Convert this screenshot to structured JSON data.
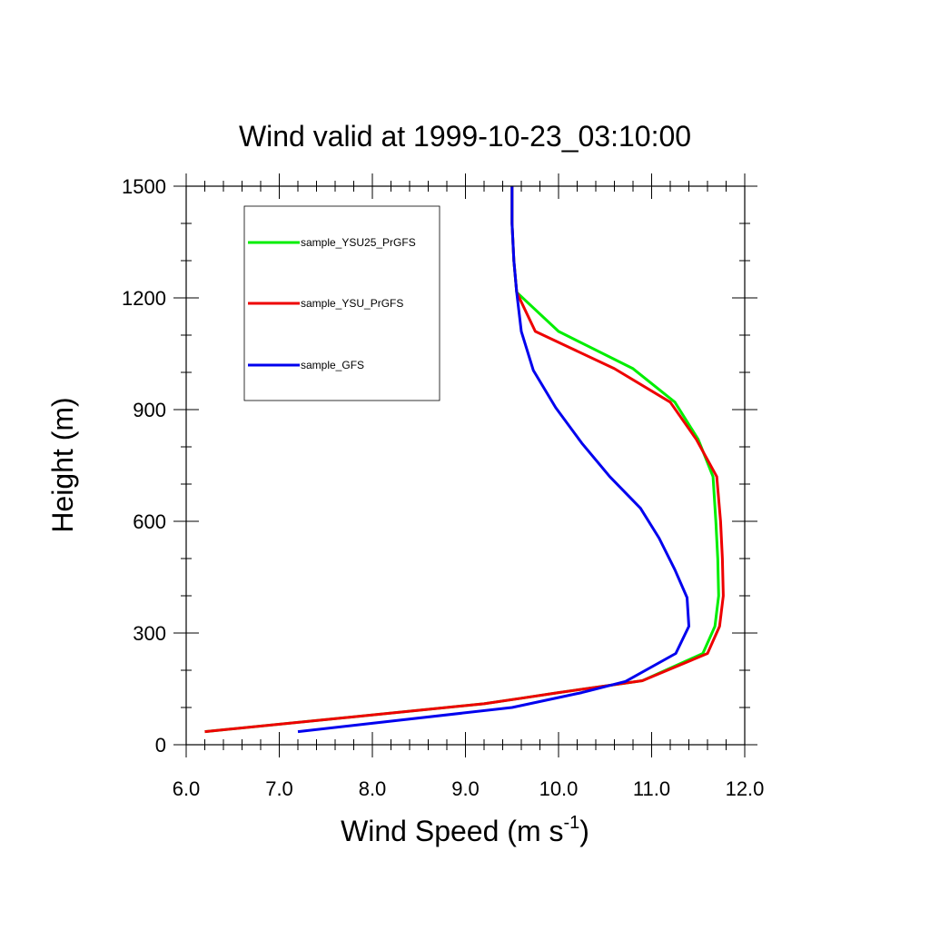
{
  "chart_data": {
    "type": "line",
    "title": "Wind valid at 1999-10-23_03:10:00",
    "xlabel": "Wind Speed (m s",
    "xlabel_sup": "-1",
    "xlabel_close": ")",
    "ylabel": "Height (m)",
    "xlim": [
      6.0,
      12.0
    ],
    "ylim": [
      0,
      1500
    ],
    "xticks": [
      6.0,
      7.0,
      8.0,
      9.0,
      10.0,
      11.0,
      12.0
    ],
    "xtick_labels": [
      "6.0",
      "7.0",
      "8.0",
      "9.0",
      "10.0",
      "11.0",
      "12.0"
    ],
    "yticks": [
      0,
      300,
      600,
      900,
      1200,
      1500
    ],
    "ytick_labels": [
      "0",
      "300",
      "600",
      "900",
      "1200",
      "1500"
    ],
    "grid": false,
    "legend_position": "top-left",
    "series": [
      {
        "name": "sample_YSU25_PrGFS",
        "color": "#00ee00",
        "points": [
          [
            6.2,
            35
          ],
          [
            9.2,
            110
          ],
          [
            9.6,
            125
          ],
          [
            10.0,
            140
          ],
          [
            10.9,
            172
          ],
          [
            11.55,
            245
          ],
          [
            11.68,
            318
          ],
          [
            11.72,
            400
          ],
          [
            11.71,
            500
          ],
          [
            11.69,
            600
          ],
          [
            11.66,
            720
          ],
          [
            11.5,
            820
          ],
          [
            11.25,
            920
          ],
          [
            10.8,
            1010
          ],
          [
            10.0,
            1110
          ],
          [
            9.55,
            1215
          ],
          [
            9.52,
            1300
          ],
          [
            9.5,
            1400
          ],
          [
            9.5,
            1500
          ]
        ]
      },
      {
        "name": "sample_YSU_PrGFS",
        "color": "#ee0000",
        "points": [
          [
            6.2,
            35
          ],
          [
            9.2,
            110
          ],
          [
            9.6,
            125
          ],
          [
            10.0,
            140
          ],
          [
            10.9,
            172
          ],
          [
            11.6,
            245
          ],
          [
            11.73,
            318
          ],
          [
            11.77,
            400
          ],
          [
            11.76,
            500
          ],
          [
            11.74,
            600
          ],
          [
            11.7,
            720
          ],
          [
            11.48,
            820
          ],
          [
            11.2,
            920
          ],
          [
            10.6,
            1010
          ],
          [
            9.75,
            1110
          ],
          [
            9.55,
            1215
          ],
          [
            9.52,
            1300
          ],
          [
            9.5,
            1400
          ],
          [
            9.5,
            1500
          ]
        ]
      },
      {
        "name": "sample_GFS",
        "color": "#0000ee",
        "points": [
          [
            7.2,
            35
          ],
          [
            9.5,
            100
          ],
          [
            10.25,
            140
          ],
          [
            10.72,
            170
          ],
          [
            11.26,
            245
          ],
          [
            11.4,
            318
          ],
          [
            11.38,
            395
          ],
          [
            11.25,
            470
          ],
          [
            11.08,
            555
          ],
          [
            10.88,
            635
          ],
          [
            10.55,
            720
          ],
          [
            10.25,
            810
          ],
          [
            9.97,
            905
          ],
          [
            9.73,
            1005
          ],
          [
            9.6,
            1110
          ],
          [
            9.55,
            1215
          ],
          [
            9.52,
            1300
          ],
          [
            9.5,
            1400
          ],
          [
            9.5,
            1500
          ]
        ]
      }
    ]
  }
}
